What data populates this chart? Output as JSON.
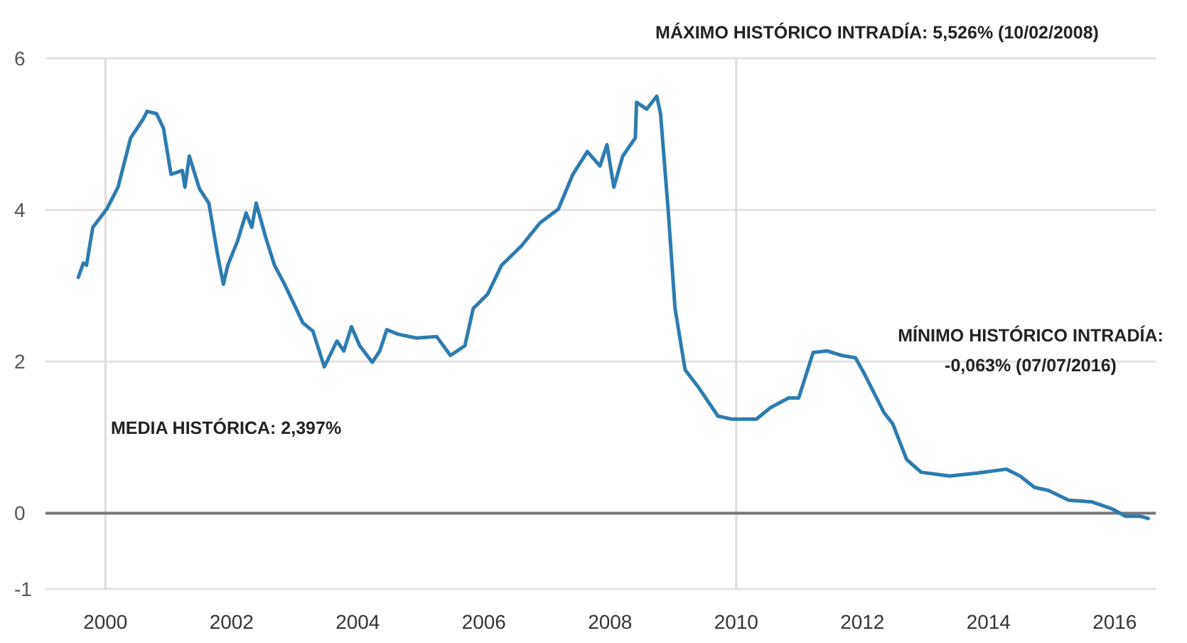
{
  "chart_data": {
    "type": "line",
    "xlim": [
      1999.05,
      2016.65
    ],
    "xticks": [
      2000,
      2002,
      2004,
      2006,
      2008,
      2010,
      2012,
      2014,
      2016
    ],
    "ylim": [
      -1,
      6
    ],
    "yticks": [
      -1,
      0,
      2,
      4,
      6
    ],
    "grid": "y",
    "line_style": "solid",
    "marker": "none",
    "ref_lines": [
      {
        "axis": "x",
        "value": 2000,
        "color": "#dddddd"
      },
      {
        "axis": "x",
        "value": 2010,
        "color": "#dddddd"
      },
      {
        "axis": "y",
        "value": 0,
        "color": "#777777"
      }
    ],
    "annotations": [
      "MÁXIMO HISTÓRICO INTRADÍA: 5,526% (10/02/2008)",
      "MEDIA HISTÓRICA: 2,397%",
      "MÍNIMO HISTÓRICO INTRADÍA:\n-0,063% (07/07/2016)"
    ],
    "series": [
      {
        "color": "#2e7bb0",
        "x": [
          1999.57,
          1999.65,
          1999.7,
          1999.8,
          2000.02,
          2000.2,
          2000.4,
          2000.6,
          2000.66,
          2000.81,
          2000.92,
          2001.04,
          2001.22,
          2001.26,
          2001.33,
          2001.49,
          2001.64,
          2001.78,
          2001.87,
          2001.94,
          2002.09,
          2002.23,
          2002.32,
          2002.39,
          2002.54,
          2002.68,
          2002.84,
          2003.13,
          2003.29,
          2003.47,
          2003.67,
          2003.78,
          2003.9,
          2004.03,
          2004.23,
          2004.35,
          2004.46,
          2004.64,
          2004.93,
          2005.25,
          2005.47,
          2005.7,
          2005.83,
          2006.06,
          2006.28,
          2006.6,
          2006.89,
          2007.18,
          2007.41,
          2007.64,
          2007.84,
          2007.95,
          2008.06,
          2008.2,
          2008.4,
          2008.42,
          2008.58,
          2008.74,
          2008.8,
          2008.92,
          2009.03,
          2009.19,
          2009.41,
          2009.71,
          2009.93,
          2010.32,
          2010.54,
          2010.83,
          2010.99,
          2011.22,
          2011.44,
          2011.67,
          2011.89,
          2012.03,
          2012.34,
          2012.48,
          2012.7,
          2012.93,
          2013.38,
          2013.83,
          2014.28,
          2014.5,
          2014.73,
          2014.95,
          2015.27,
          2015.63,
          2015.95,
          2016.17,
          2016.4,
          2016.53
        ],
        "values": [
          3.11,
          3.3,
          3.27,
          3.77,
          4.01,
          4.3,
          4.95,
          5.2,
          5.3,
          5.27,
          5.08,
          4.47,
          4.52,
          4.3,
          4.71,
          4.28,
          4.09,
          3.4,
          3.02,
          3.27,
          3.58,
          3.96,
          3.77,
          4.09,
          3.64,
          3.27,
          3.02,
          2.51,
          2.4,
          1.93,
          2.27,
          2.14,
          2.46,
          2.21,
          1.99,
          2.14,
          2.42,
          2.36,
          2.31,
          2.33,
          2.08,
          2.21,
          2.7,
          2.89,
          3.27,
          3.53,
          3.83,
          4.01,
          4.47,
          4.77,
          4.58,
          4.86,
          4.3,
          4.71,
          4.95,
          5.42,
          5.33,
          5.5,
          5.27,
          4.01,
          2.7,
          1.89,
          1.65,
          1.28,
          1.24,
          1.24,
          1.39,
          1.52,
          1.52,
          2.12,
          2.14,
          2.08,
          2.05,
          1.84,
          1.33,
          1.18,
          0.71,
          0.54,
          0.49,
          0.53,
          0.58,
          0.49,
          0.34,
          0.3,
          0.17,
          0.15,
          0.06,
          -0.04,
          -0.04,
          -0.07
        ]
      }
    ]
  }
}
